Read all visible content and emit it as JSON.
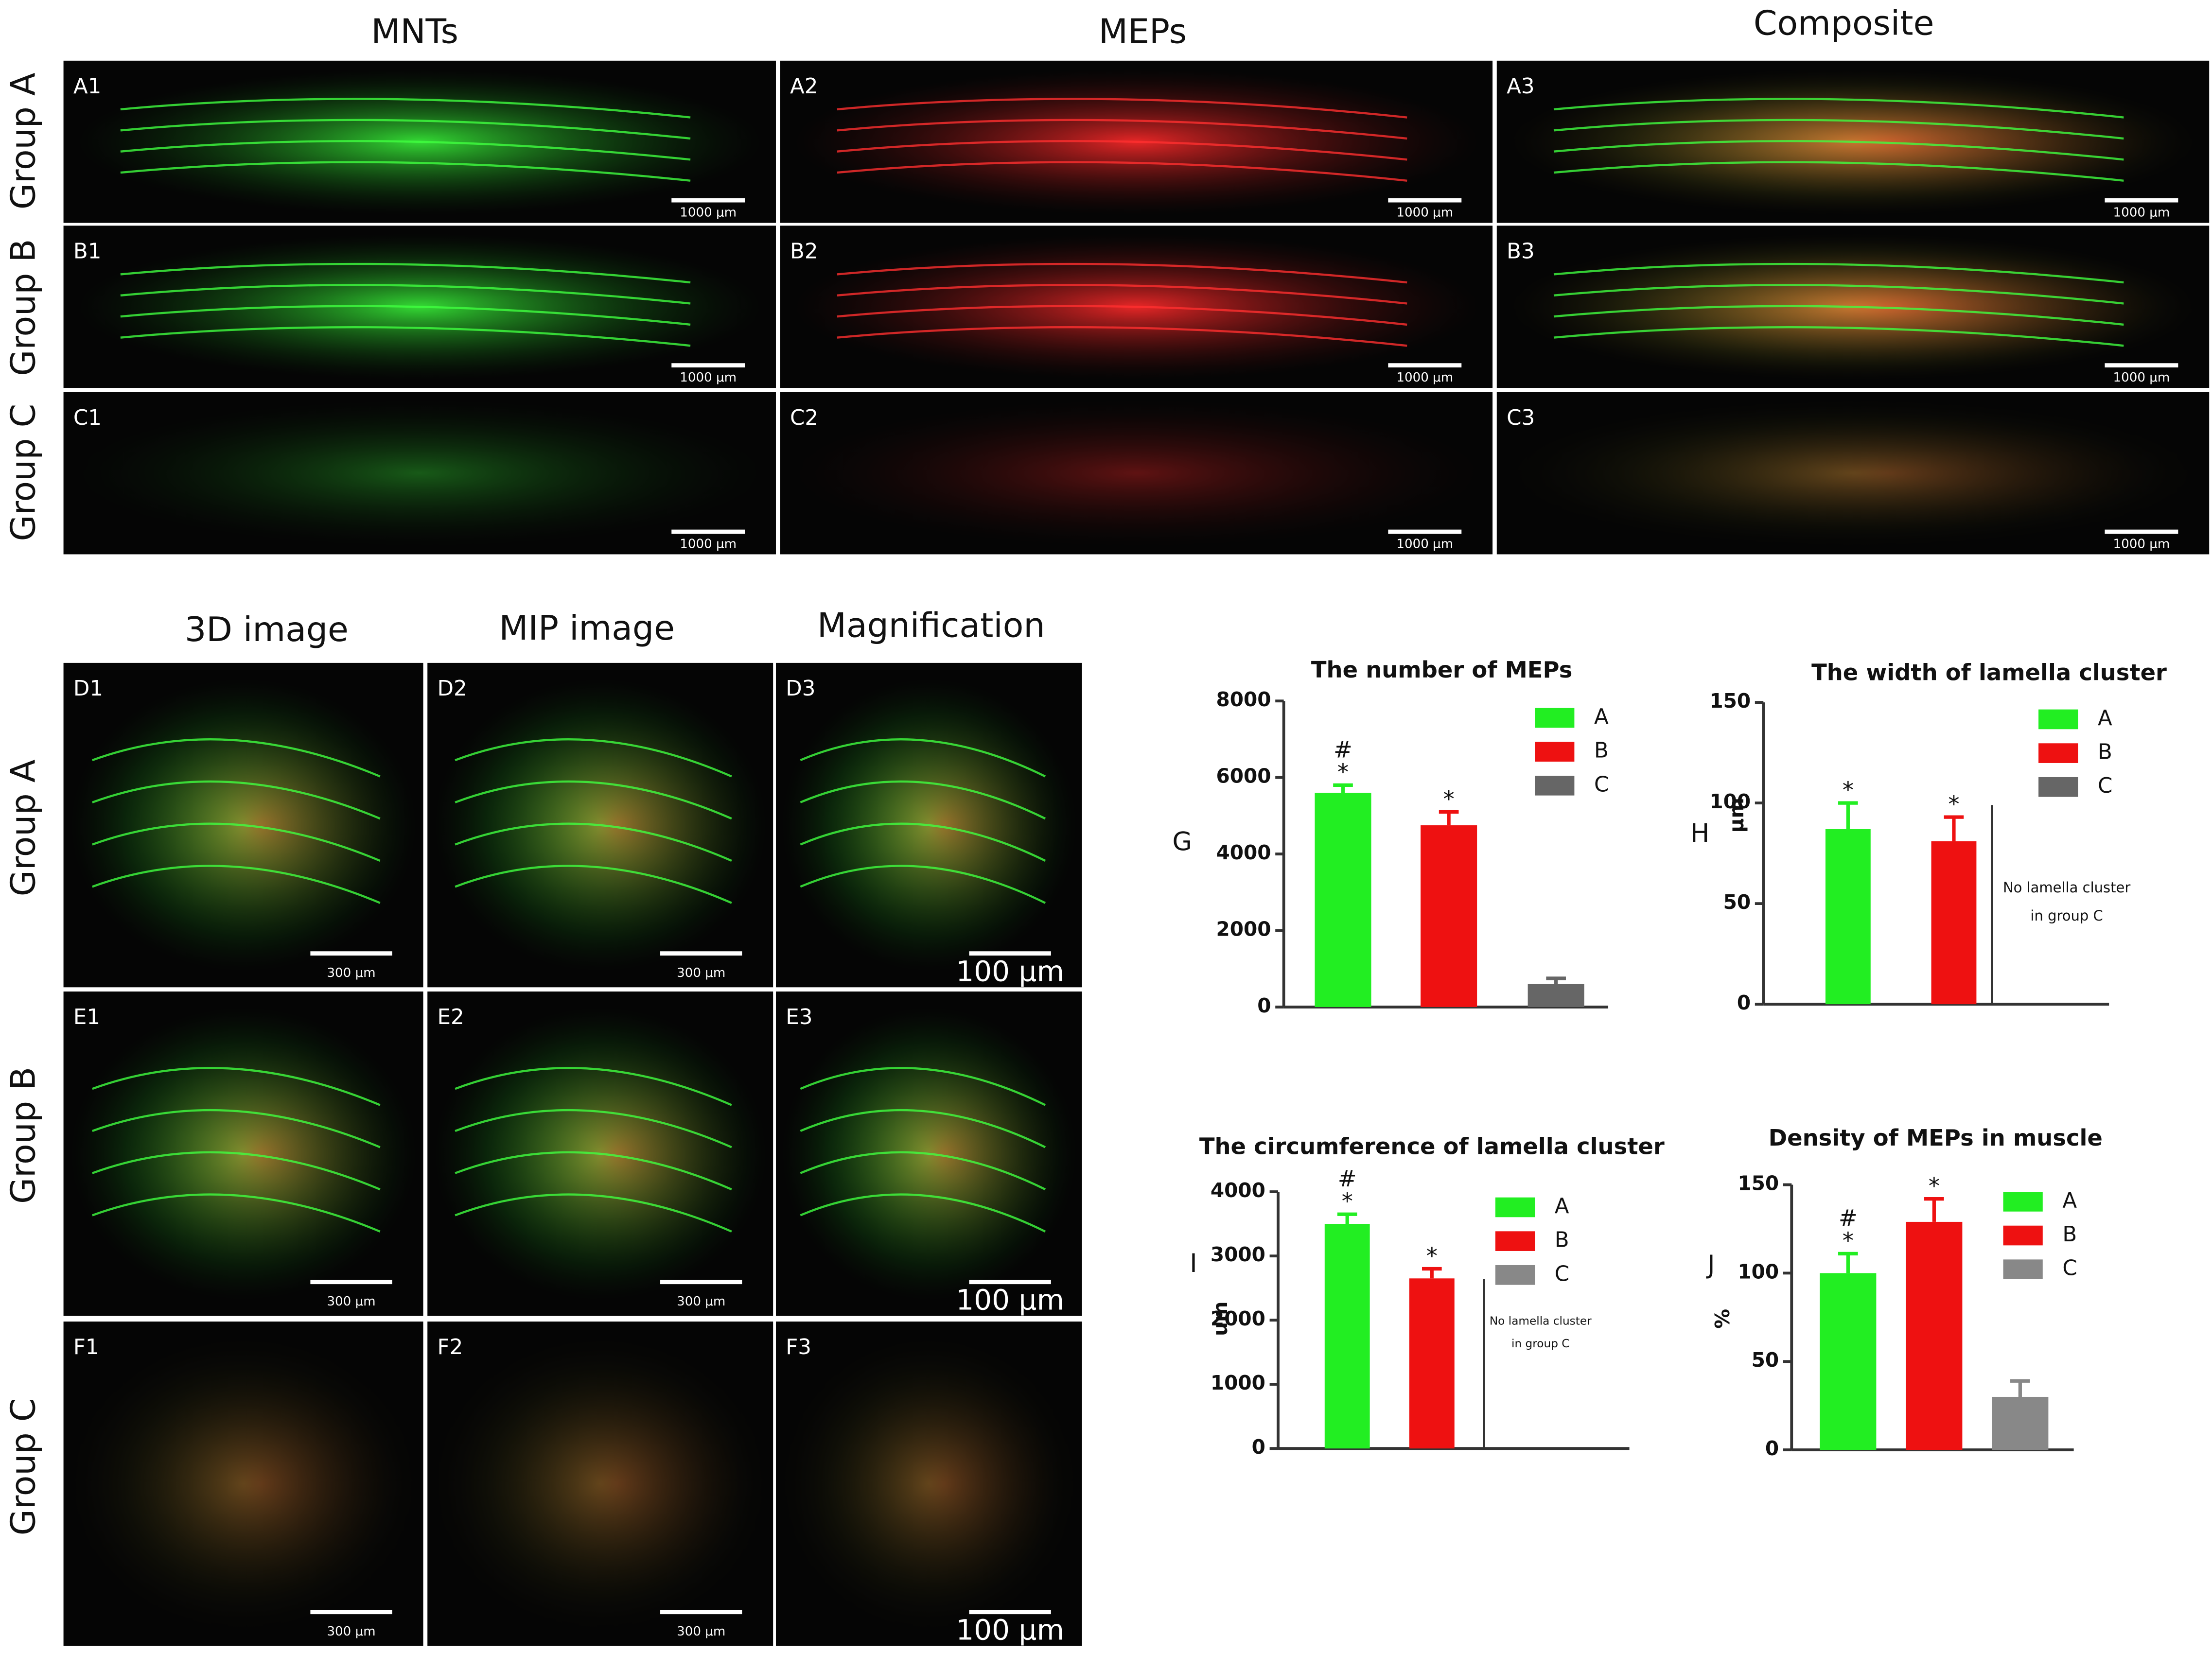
{
  "column_headers_top": [
    "MNTs",
    "MEPs",
    "Composite"
  ],
  "row_labels_top": [
    "Group A",
    "Group B",
    "Group C"
  ],
  "panels_top": [
    {
      "label": "A1",
      "scale_bar": "1000 μm"
    },
    {
      "label": "A2",
      "scale_bar": "1000 μm"
    },
    {
      "label": "A3",
      "scale_bar": "1000 μm"
    },
    {
      "label": "B1",
      "scale_bar": "1000 μm"
    },
    {
      "label": "B2",
      "scale_bar": "1000 μm"
    },
    {
      "label": "B3",
      "scale_bar": "1000 μm"
    },
    {
      "label": "C1",
      "scale_bar": "1000 μm"
    },
    {
      "label": "C2",
      "scale_bar": "1000 μm"
    },
    {
      "label": "C3",
      "scale_bar": "1000 μm"
    }
  ],
  "column_headers_bottom": [
    "3D image",
    "MIP image",
    "Magnification"
  ],
  "row_labels_bottom": [
    "Group A",
    "Group B",
    "Group C"
  ],
  "panels_bottom": [
    {
      "label": "D1",
      "scale_bar": "300 μm"
    },
    {
      "label": "D2",
      "scale_bar": "300 μm"
    },
    {
      "label": "D3",
      "scale_bar": "100 μm"
    },
    {
      "label": "E1",
      "scale_bar": "300 μm"
    },
    {
      "label": "E2",
      "scale_bar": "300 μm"
    },
    {
      "label": "E3",
      "scale_bar": "100 μm"
    },
    {
      "label": "F1",
      "scale_bar": "300 μm"
    },
    {
      "label": "F2",
      "scale_bar": "300 μm"
    },
    {
      "label": "F3",
      "scale_bar": "100 μm"
    }
  ],
  "chart_data": [
    {
      "type": "bar",
      "panel": "G",
      "title": "The number of MEPs",
      "ylim": [
        0,
        8000
      ],
      "yticks": [
        0,
        2000,
        4000,
        6000,
        8000
      ],
      "series": [
        {
          "name": "A",
          "color": "#22ee22",
          "values": [
            5600
          ],
          "errors": [
            200
          ],
          "marks": [
            "#",
            "*"
          ]
        },
        {
          "name": "B",
          "color": "#ee1111",
          "values": [
            4750
          ],
          "errors": [
            350
          ],
          "marks": [
            "*"
          ]
        },
        {
          "name": "C",
          "color": "#666666",
          "values": [
            600
          ],
          "errors": [
            150
          ]
        }
      ]
    },
    {
      "type": "bar",
      "panel": "H",
      "title": "The width of lamella cluster",
      "y_label": "μm",
      "ylim": [
        0,
        150
      ],
      "yticks": [
        0,
        50,
        100,
        150
      ],
      "annotation": [
        "No lamella cluster",
        "in group C"
      ],
      "series": [
        {
          "name": "A",
          "color": "#22ee22",
          "values": [
            87
          ],
          "errors": [
            13
          ],
          "marks": [
            "*"
          ]
        },
        {
          "name": "B",
          "color": "#ee1111",
          "values": [
            81
          ],
          "errors": [
            12
          ],
          "marks": [
            "*"
          ]
        },
        {
          "name": "C",
          "color": "#666666",
          "values": [
            null
          ],
          "errors": [
            null
          ]
        }
      ]
    },
    {
      "type": "bar",
      "panel": "I",
      "title": "The circumference of lamella cluster",
      "y_label": "um",
      "ylim": [
        0,
        4000
      ],
      "yticks": [
        0,
        1000,
        2000,
        3000,
        4000
      ],
      "annotation": [
        "No lamella cluster",
        "in group C"
      ],
      "series": [
        {
          "name": "A",
          "color": "#22ee22",
          "values": [
            3500
          ],
          "errors": [
            150
          ],
          "marks": [
            "#",
            "*"
          ]
        },
        {
          "name": "B",
          "color": "#ee1111",
          "values": [
            2650
          ],
          "errors": [
            150
          ],
          "marks": [
            "*"
          ]
        },
        {
          "name": "C",
          "color": "#888888",
          "values": [
            null
          ],
          "errors": [
            null
          ]
        }
      ]
    },
    {
      "type": "bar",
      "panel": "J",
      "title": "Density of MEPs in muscle",
      "y_label": "%",
      "ylim": [
        0,
        150
      ],
      "yticks": [
        0,
        50,
        100,
        150
      ],
      "series": [
        {
          "name": "A",
          "color": "#22ee22",
          "values": [
            100
          ],
          "errors": [
            11
          ],
          "marks": [
            "#",
            "*"
          ]
        },
        {
          "name": "B",
          "color": "#ee1111",
          "values": [
            129
          ],
          "errors": [
            13
          ],
          "marks": [
            "*"
          ]
        },
        {
          "name": "C",
          "color": "#888888",
          "values": [
            30
          ],
          "errors": [
            9
          ]
        }
      ]
    }
  ]
}
